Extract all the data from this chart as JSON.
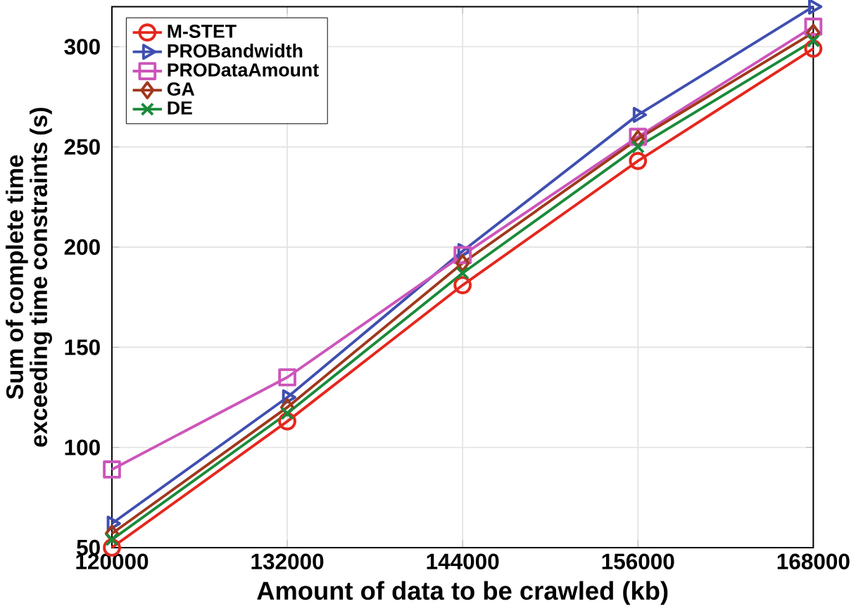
{
  "chart_data": {
    "type": "line",
    "xlabel": "Amount of data to be crawled (kb)",
    "ylabel": "Sum of complete time exceeding time constraints (s)",
    "x": [
      120000,
      132000,
      144000,
      156000,
      168000
    ],
    "xlim": [
      120000,
      168000
    ],
    "xticks": [
      120000,
      132000,
      144000,
      156000,
      168000
    ],
    "ylim": [
      50,
      320
    ],
    "yticks": [
      50,
      100,
      150,
      200,
      250,
      300
    ],
    "grid": true,
    "legend": "top left",
    "line_style": "solid",
    "series": [
      {
        "name": "M-STET",
        "color": "#e5271d",
        "marker": "circle",
        "values": [
          50,
          113,
          181,
          243,
          299
        ]
      },
      {
        "name": "PROBandwidth",
        "color": "#3f4fb0",
        "marker": "triangle",
        "values": [
          62,
          125,
          198,
          266,
          320
        ]
      },
      {
        "name": "PRODataAmount",
        "color": "#cc55bb",
        "marker": "square",
        "values": [
          89,
          135,
          196,
          255,
          310
        ]
      },
      {
        "name": "GA",
        "color": "#a0381c",
        "marker": "diamond",
        "values": [
          57,
          120,
          192,
          254,
          307
        ]
      },
      {
        "name": "DE",
        "color": "#1a8a3a",
        "marker": "cross",
        "values": [
          54,
          117,
          187,
          250,
          303
        ]
      }
    ]
  }
}
